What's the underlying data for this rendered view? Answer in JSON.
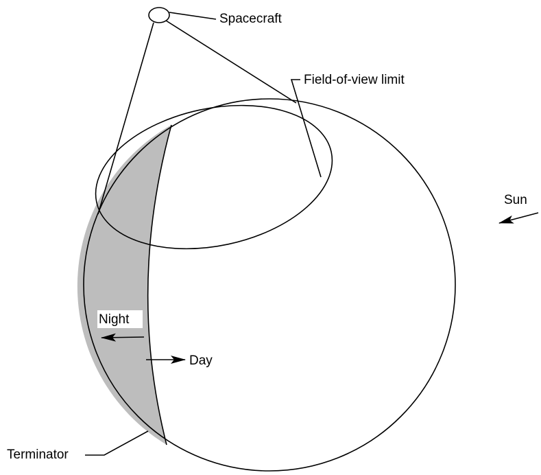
{
  "labels": {
    "spacecraft": "Spacecraft",
    "fov": "Field-of-view limit",
    "sun": "Sun",
    "night": "Night",
    "day": "Day",
    "terminator": "Terminator"
  }
}
